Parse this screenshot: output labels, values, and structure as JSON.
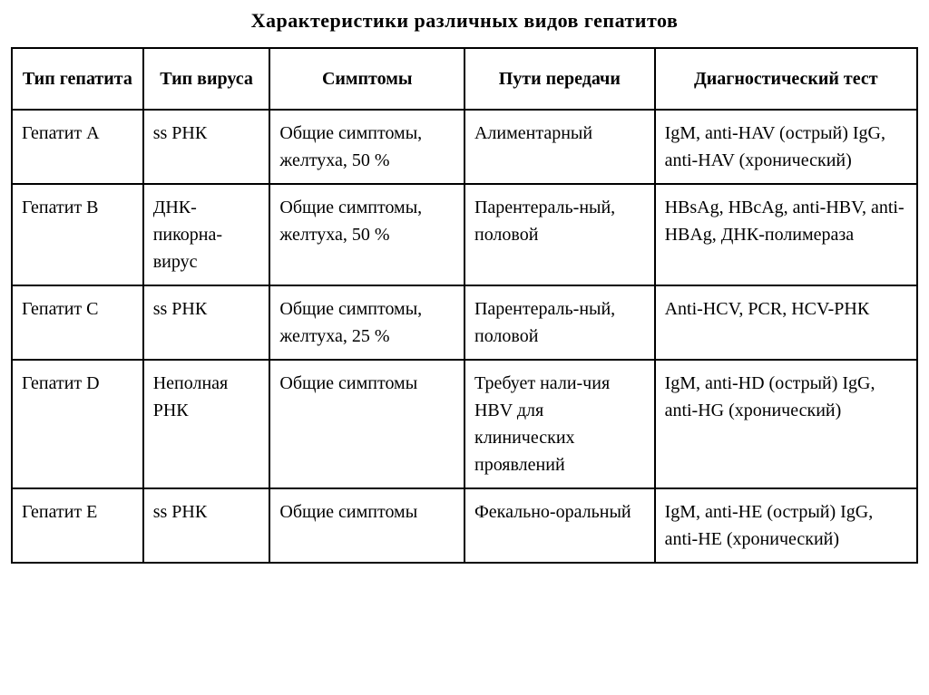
{
  "title": "Характеристики различных видов гепатитов",
  "table": {
    "type": "table",
    "background_color": "#ffffff",
    "border_color": "#000000",
    "text_color": "#000000",
    "header_fontsize": 20,
    "cell_fontsize": 20,
    "columns": [
      {
        "label": "Тип гепатита",
        "width_pct": 14.5,
        "align": "center"
      },
      {
        "label": "Тип вируса",
        "width_pct": 14.0,
        "align": "center"
      },
      {
        "label": "Симптомы",
        "width_pct": 21.5,
        "align": "center"
      },
      {
        "label": "Пути передачи",
        "width_pct": 21.0,
        "align": "center"
      },
      {
        "label": "Диагностический тест",
        "width_pct": 29.0,
        "align": "center"
      }
    ],
    "rows": [
      [
        "Гепатит A",
        "ss РНК",
        "Общие симптомы, желтуха, 50 %",
        "Алиментарный",
        "IgM, anti-HAV (острый) IgG, anti-HAV (хронический)"
      ],
      [
        "Гепатит B",
        "ДНК-пикорна-вирус",
        "Общие симптомы, желтуха, 50 %",
        "Парентераль-ный, половой",
        "HBsAg, HBcAg, anti-HBV, anti-HBAg, ДНК-полимераза"
      ],
      [
        "Гепатит C",
        "ss РНК",
        "Общие симптомы, желтуха, 25 %",
        "Парентераль-ный, половой",
        "Anti-HCV, PCR, HCV-РНК"
      ],
      [
        "Гепатит D",
        "Неполная РНК",
        "Общие симптомы",
        "Требует нали-чия HBV для клинических проявлений",
        "IgM, anti-HD (острый) IgG, anti-HG (хронический)"
      ],
      [
        "Гепатит E",
        "ss РНК",
        "Общие симптомы",
        "Фекально-оральный",
        "IgM, anti-HE (острый) IgG, anti-HE (хронический)"
      ]
    ]
  }
}
